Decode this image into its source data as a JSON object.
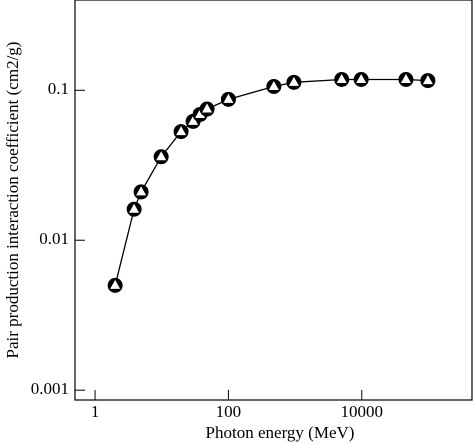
{
  "chart_data": {
    "type": "line",
    "x_label": "Photon energy (MeV)",
    "y_label": "Pair production interaction coefficient (cm2/g)",
    "x": [
      2.0,
      3.85,
      4.9,
      9.8,
      19.5,
      29.5,
      37.6,
      47.8,
      100,
      480,
      960,
      5000,
      9800,
      46000,
      98000
    ],
    "series": [
      {
        "color": "#000000",
        "values": [
          0.005,
          0.0161,
          0.021,
          0.036,
          0.053,
          0.062,
          0.069,
          0.075,
          0.087,
          0.106,
          0.113,
          0.118,
          0.118,
          0.118,
          0.116
        ]
      }
    ],
    "xlim": [
      0.5,
      450000
    ],
    "ylim": [
      0.00086,
      0.4
    ],
    "xticks": [
      1,
      100,
      10000
    ],
    "yticks": [
      0.001,
      0.01,
      0.1
    ],
    "xscale": "log",
    "yscale": "log"
  }
}
